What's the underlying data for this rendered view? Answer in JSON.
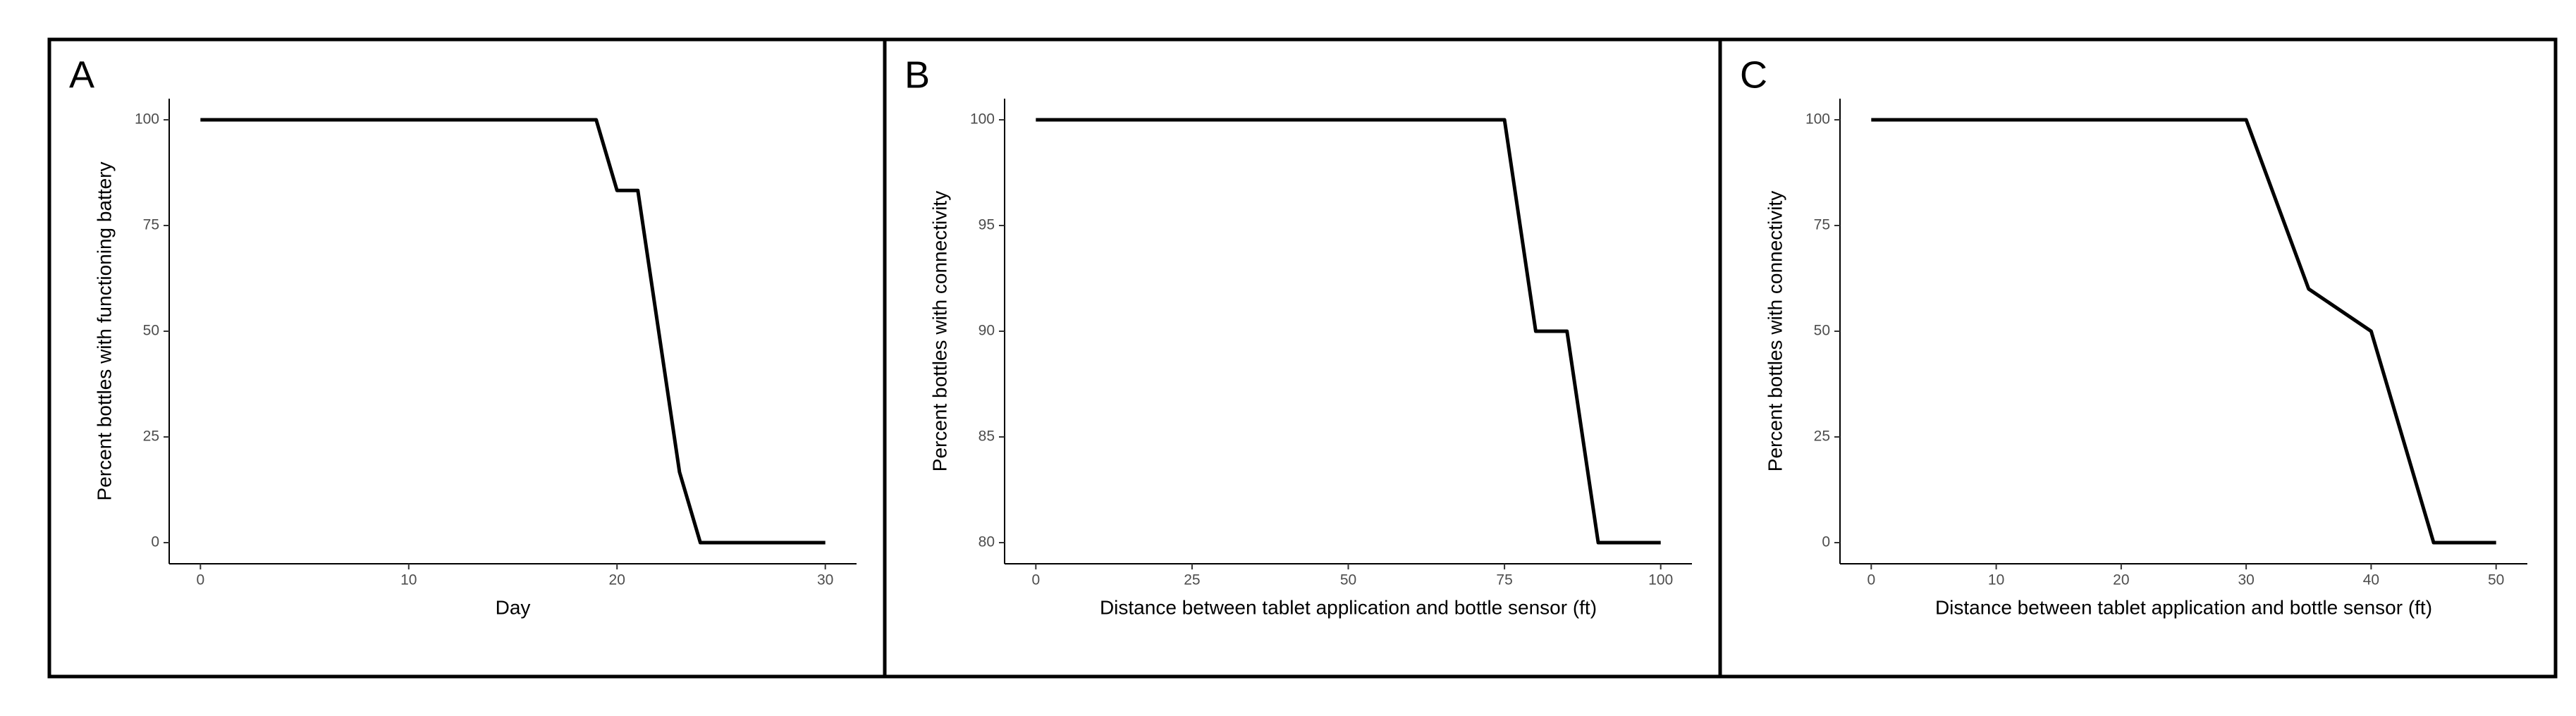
{
  "chart_data": [
    {
      "type": "line",
      "panel_label": "A",
      "x_label": "Day",
      "y_label": "Percent bottles with functioning battery",
      "x": [
        0,
        19,
        20,
        21,
        23,
        24,
        30
      ],
      "values": [
        100,
        100,
        83.3,
        83.3,
        16.7,
        0,
        0
      ],
      "color": "#000000",
      "xlim": [
        -1.5,
        31.5
      ],
      "ylim": [
        -5,
        105
      ],
      "xticks": [
        0,
        10,
        20,
        30
      ],
      "yticks": [
        0,
        25,
        50,
        75,
        100
      ]
    },
    {
      "type": "line",
      "panel_label": "B",
      "x_label": "Distance between tablet application and bottle sensor (ft)",
      "y_label": "Percent bottles with connectivity",
      "x": [
        0,
        75,
        80,
        85,
        90,
        100
      ],
      "values": [
        100,
        100,
        90,
        90,
        80,
        80
      ],
      "color": "#000000",
      "xlim": [
        -5,
        105
      ],
      "ylim": [
        79,
        101
      ],
      "xticks": [
        0,
        25,
        50,
        75,
        100
      ],
      "yticks": [
        80,
        85,
        90,
        95,
        100
      ]
    },
    {
      "type": "line",
      "panel_label": "C",
      "x_label": "Distance between tablet application and bottle sensor (ft)",
      "y_label": "Percent bottles with connectivity",
      "x": [
        0,
        30,
        35,
        40,
        45,
        50
      ],
      "values": [
        100,
        100,
        60,
        50,
        0,
        0
      ],
      "color": "#000000",
      "xlim": [
        -2.5,
        52.5
      ],
      "ylim": [
        -5,
        105
      ],
      "xticks": [
        0,
        10,
        20,
        30,
        40,
        50
      ],
      "yticks": [
        0,
        25,
        50,
        75,
        100
      ]
    }
  ]
}
